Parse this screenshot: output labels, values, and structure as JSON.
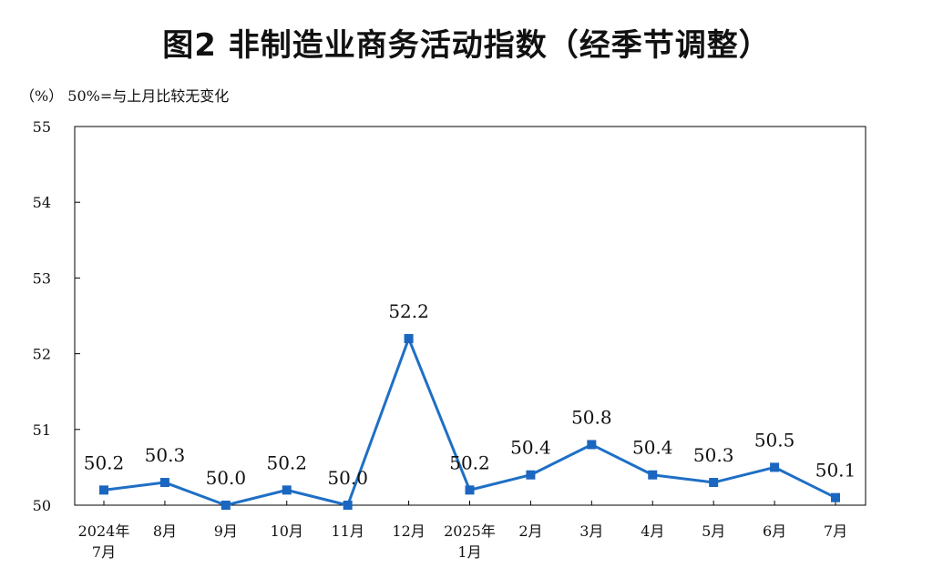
{
  "title": "图2  非制造业商务活动指数（经季节调整）",
  "unit_note": "（%） 50%=与上月比较无变化",
  "colors": {
    "line": "#1f6fc5",
    "marker": "#1a66c0",
    "axis": "#000000"
  },
  "chart_data": {
    "type": "line",
    "title": "图2  非制造业商务活动指数（经季节调整）",
    "ylabel": "（%）",
    "ylim": [
      50,
      55
    ],
    "yticks": [
      50,
      51,
      52,
      53,
      54,
      55
    ],
    "grid": false,
    "categories": [
      [
        "2024年",
        "7月"
      ],
      [
        "8月"
      ],
      [
        "9月"
      ],
      [
        "10月"
      ],
      [
        "11月"
      ],
      [
        "12月"
      ],
      [
        "2025年",
        "1月"
      ],
      [
        "2月"
      ],
      [
        "3月"
      ],
      [
        "4月"
      ],
      [
        "5月"
      ],
      [
        "6月"
      ],
      [
        "7月"
      ]
    ],
    "values": [
      50.2,
      50.3,
      50.0,
      50.2,
      50.0,
      52.2,
      50.2,
      50.4,
      50.8,
      50.4,
      50.3,
      50.5,
      50.1
    ],
    "data_labels": [
      "50.2",
      "50.3",
      "50.0",
      "50.2",
      "50.0",
      "52.2",
      "50.2",
      "50.4",
      "50.8",
      "50.4",
      "50.3",
      "50.5",
      "50.1"
    ]
  }
}
